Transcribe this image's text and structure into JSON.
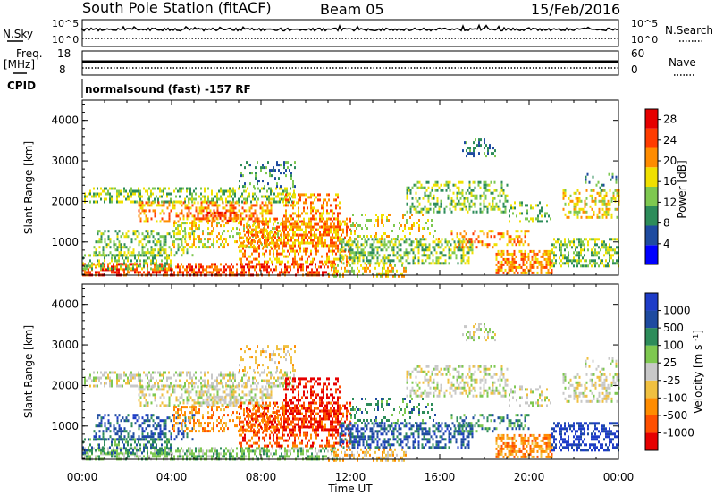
{
  "header": {
    "station": "South Pole Station (fitACF)",
    "beam": "Beam 05",
    "date": "15/Feb/2016"
  },
  "top_panels": {
    "nsky_label": "N.Sky",
    "nsearch_label": "N.Search",
    "noise_ticks_left": [
      "10^5",
      "10^0"
    ],
    "noise_ticks_right": [
      "10^5",
      "10^0"
    ],
    "freq_label": "Freq.",
    "freq_unit": "[MHz]",
    "freq_ticks_left": [
      "18",
      "8"
    ],
    "freq_ticks_right": [
      "60",
      "0"
    ],
    "nave_label": "Nave",
    "cpid_label": "CPID",
    "cpid_text": "normalsound (fast) -157 RF"
  },
  "colors": {
    "power_scale": [
      "#0000ff",
      "#1e4ba0",
      "#2d8c5a",
      "#7ec850",
      "#f0e000",
      "#ff8c00",
      "#ff3c00",
      "#e60000"
    ],
    "velocity_scale": [
      "#e60000",
      "#ff5000",
      "#ff8c00",
      "#f0c040",
      "#c8c8c8",
      "#7ec850",
      "#2d8c5a",
      "#1e4ba0",
      "#1e3cc8"
    ]
  },
  "chart_data": [
    {
      "type": "heatmap",
      "title": "Power",
      "xlabel": "Time UT",
      "ylabel": "Slant Range [km]",
      "x_tick_labels": [
        "00:00",
        "04:00",
        "08:00",
        "12:00",
        "16:00",
        "20:00",
        "00:00"
      ],
      "x_range_hours": [
        0,
        24
      ],
      "y_ticks": [
        1000,
        2000,
        3000,
        4000
      ],
      "ylim": [
        180,
        4500
      ],
      "colorbar": {
        "label": "Power [dB]",
        "ticks": [
          4,
          8,
          12,
          16,
          20,
          24,
          28
        ],
        "range": [
          0,
          30
        ]
      }
    },
    {
      "type": "heatmap",
      "title": "Velocity",
      "xlabel": "Time UT",
      "ylabel": "Slant Range [km]",
      "x_tick_labels": [
        "00:00",
        "04:00",
        "08:00",
        "12:00",
        "16:00",
        "20:00",
        "00:00"
      ],
      "x_range_hours": [
        0,
        24
      ],
      "y_ticks": [
        1000,
        2000,
        3000,
        4000
      ],
      "ylim": [
        180,
        4500
      ],
      "colorbar": {
        "label": "Velocity [m s^-1]",
        "ticks": [
          "1000",
          "500",
          "100",
          "25",
          "-25",
          "-100",
          "-500",
          "-1000"
        ]
      }
    }
  ]
}
